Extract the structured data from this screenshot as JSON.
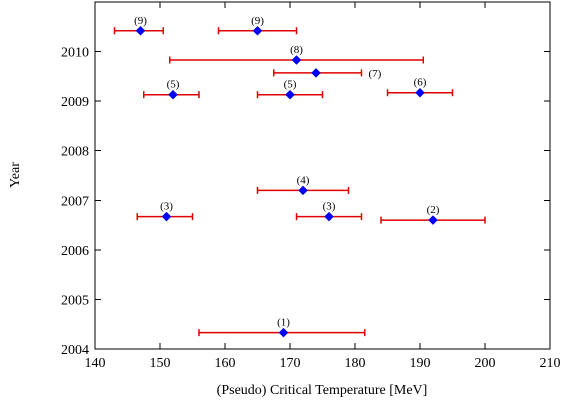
{
  "chart_data": {
    "type": "scatter",
    "title": "",
    "xlabel": "(Pseudo) Critical Temperature  [MeV]",
    "ylabel": "Year",
    "xlim": [
      140,
      210
    ],
    "ylim": [
      2004,
      2011
    ],
    "xticks": [
      140,
      150,
      160,
      170,
      180,
      190,
      200,
      210
    ],
    "yticks": [
      2004,
      2005,
      2006,
      2007,
      2008,
      2009,
      2010
    ],
    "xtick_labels": [
      "140",
      "150",
      "160",
      "170",
      "180",
      "190",
      "200",
      "210"
    ],
    "ytick_labels": [
      "2004",
      "2005",
      "2006",
      "2007",
      "2008",
      "2009",
      "2010"
    ],
    "grid": false,
    "legend": "none",
    "colors": {
      "errorbar": "#e00000",
      "point": "#0000ff"
    },
    "points": [
      {
        "label": "(1)",
        "x": 169,
        "xerr_low": 156,
        "xerr_high": 181.5,
        "y": 2004.33
      },
      {
        "label": "(2)",
        "x": 192,
        "xerr_low": 184,
        "xerr_high": 200,
        "y": 2006.6
      },
      {
        "label": "(3)",
        "x": 151,
        "xerr_low": 146.5,
        "xerr_high": 155,
        "y": 2006.67
      },
      {
        "label": "(3)",
        "x": 176,
        "xerr_low": 171,
        "xerr_high": 181,
        "y": 2006.67
      },
      {
        "label": "(4)",
        "x": 172,
        "xerr_low": 165,
        "xerr_high": 179,
        "y": 2007.2
      },
      {
        "label": "(5)",
        "x": 152,
        "xerr_low": 147.5,
        "xerr_high": 156,
        "y": 2009.13
      },
      {
        "label": "(5)",
        "x": 170,
        "xerr_low": 165,
        "xerr_high": 175,
        "y": 2009.13
      },
      {
        "label": "(6)",
        "x": 190,
        "xerr_low": 185,
        "xerr_high": 195,
        "y": 2009.17
      },
      {
        "label": "(7)",
        "x": 174,
        "xerr_low": 167.5,
        "xerr_high": 181,
        "y": 2009.57
      },
      {
        "label": "(8)",
        "x": 171,
        "xerr_low": 151.5,
        "xerr_high": 190.5,
        "y": 2009.83
      },
      {
        "label": "(9)",
        "x": 147,
        "xerr_low": 143,
        "xerr_high": 150.5,
        "y": 2010.42
      },
      {
        "label": "(9)",
        "x": 165,
        "xerr_low": 159,
        "xerr_high": 171,
        "y": 2010.42
      }
    ]
  }
}
